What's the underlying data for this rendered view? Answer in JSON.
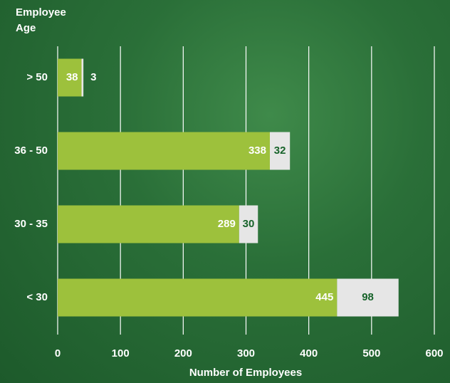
{
  "chart_data": {
    "type": "stacked-bar-horizontal",
    "y_axis_label": "Employee Age",
    "x_axis_label": "Number of Employees",
    "categories": [
      "> 50",
      "36 - 50",
      "30 - 35",
      "< 30"
    ],
    "series": [
      {
        "color": "#9dc13c",
        "values": [
          38,
          338,
          289,
          445
        ]
      },
      {
        "color": "#e6e6e6",
        "values": [
          3,
          32,
          30,
          98
        ]
      }
    ],
    "xlim": [
      0,
      600
    ],
    "xticks": [
      0,
      100,
      200,
      300,
      400,
      500,
      600
    ],
    "grid": true
  }
}
